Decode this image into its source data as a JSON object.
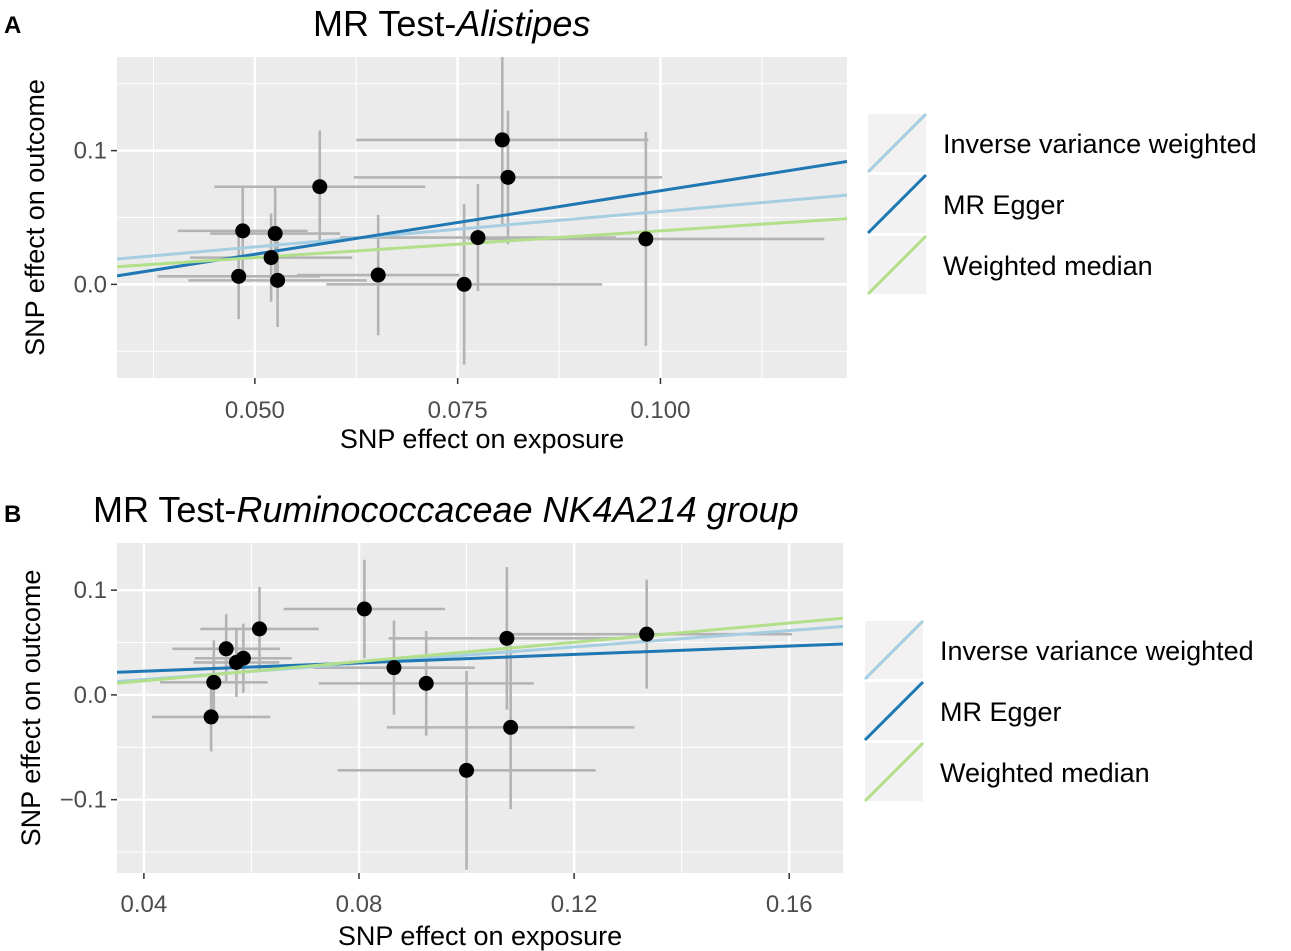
{
  "chart_data": [
    {
      "panel_label": "A",
      "type": "scatter",
      "title_prefix": "MR Test-",
      "title_italic": "Alistipes",
      "xlabel": "SNP effect on exposure",
      "ylabel": "SNP effect on outcome",
      "xlim": [
        0.033,
        0.123
      ],
      "ylim": [
        -0.07,
        0.17
      ],
      "x_ticks": [
        0.05,
        0.075,
        0.1
      ],
      "x_tick_labels": [
        "0.050",
        "0.075",
        "0.100"
      ],
      "y_ticks": [
        0.0,
        0.1
      ],
      "y_tick_labels": [
        "0.0",
        "0.1"
      ],
      "points": [
        {
          "x": 0.0485,
          "y": 0.04,
          "xerr": 0.008,
          "yerr": 0.032
        },
        {
          "x": 0.048,
          "y": 0.006,
          "xerr": 0.01,
          "yerr": 0.032
        },
        {
          "x": 0.0525,
          "y": 0.038,
          "xerr": 0.008,
          "yerr": 0.035
        },
        {
          "x": 0.052,
          "y": 0.02,
          "xerr": 0.01,
          "yerr": 0.033
        },
        {
          "x": 0.0528,
          "y": 0.003,
          "xerr": 0.011,
          "yerr": 0.035
        },
        {
          "x": 0.058,
          "y": 0.073,
          "xerr": 0.013,
          "yerr": 0.042
        },
        {
          "x": 0.0652,
          "y": 0.007,
          "xerr": 0.01,
          "yerr": 0.045
        },
        {
          "x": 0.0758,
          "y": 0.0,
          "xerr": 0.017,
          "yerr": 0.06
        },
        {
          "x": 0.0775,
          "y": 0.035,
          "xerr": 0.017,
          "yerr": 0.04
        },
        {
          "x": 0.0805,
          "y": 0.108,
          "xerr": 0.018,
          "yerr": 0.065
        },
        {
          "x": 0.0812,
          "y": 0.08,
          "xerr": 0.019,
          "yerr": 0.05
        },
        {
          "x": 0.0982,
          "y": 0.034,
          "xerr": 0.022,
          "yerr": 0.08
        }
      ],
      "lines": [
        {
          "name": "Inverse variance weighted",
          "color": "#a6cee3",
          "intercept": 0.0015,
          "slope": 0.53
        },
        {
          "name": "MR Egger",
          "color": "#1f78b4",
          "intercept": -0.025,
          "slope": 0.95
        },
        {
          "name": "Weighted median",
          "color": "#b2df8a",
          "intercept": 0.0,
          "slope": 0.4
        }
      ]
    },
    {
      "panel_label": "B",
      "type": "scatter",
      "title_prefix": "MR Test-",
      "title_italic": "Ruminococcaceae NK4A214 group",
      "xlabel": "SNP effect on exposure",
      "ylabel": "SNP effect on outcome",
      "xlim": [
        0.035,
        0.17
      ],
      "ylim": [
        -0.17,
        0.145
      ],
      "x_ticks": [
        0.04,
        0.08,
        0.12,
        0.16
      ],
      "x_tick_labels": [
        "0.04",
        "0.08",
        "0.12",
        "0.16"
      ],
      "y_ticks": [
        -0.1,
        0.0,
        0.1
      ],
      "y_tick_labels": [
        "−0.1",
        "0.0",
        "0.1"
      ],
      "points": [
        {
          "x": 0.0525,
          "y": -0.021,
          "xerr": 0.011,
          "yerr": 0.033
        },
        {
          "x": 0.053,
          "y": 0.012,
          "xerr": 0.01,
          "yerr": 0.04
        },
        {
          "x": 0.0553,
          "y": 0.044,
          "xerr": 0.01,
          "yerr": 0.033
        },
        {
          "x": 0.0572,
          "y": 0.031,
          "xerr": 0.008,
          "yerr": 0.033
        },
        {
          "x": 0.0585,
          "y": 0.035,
          "xerr": 0.009,
          "yerr": 0.033
        },
        {
          "x": 0.0615,
          "y": 0.063,
          "xerr": 0.011,
          "yerr": 0.04
        },
        {
          "x": 0.081,
          "y": 0.082,
          "xerr": 0.015,
          "yerr": 0.047
        },
        {
          "x": 0.0865,
          "y": 0.026,
          "xerr": 0.015,
          "yerr": 0.045
        },
        {
          "x": 0.0925,
          "y": 0.011,
          "xerr": 0.02,
          "yerr": 0.05
        },
        {
          "x": 0.1,
          "y": -0.072,
          "xerr": 0.024,
          "yerr": 0.095
        },
        {
          "x": 0.1075,
          "y": 0.054,
          "xerr": 0.022,
          "yerr": 0.068
        },
        {
          "x": 0.1082,
          "y": -0.031,
          "xerr": 0.023,
          "yerr": 0.078
        },
        {
          "x": 0.1335,
          "y": 0.058,
          "xerr": 0.027,
          "yerr": 0.052
        }
      ],
      "lines": [
        {
          "name": "Inverse variance weighted",
          "color": "#a6cee3",
          "intercept": -0.001,
          "slope": 0.39
        },
        {
          "name": "MR Egger",
          "color": "#1f78b4",
          "intercept": 0.0146,
          "slope": 0.2
        },
        {
          "name": "Weighted median",
          "color": "#b2df8a",
          "intercept": -0.005,
          "slope": 0.46
        }
      ]
    }
  ]
}
